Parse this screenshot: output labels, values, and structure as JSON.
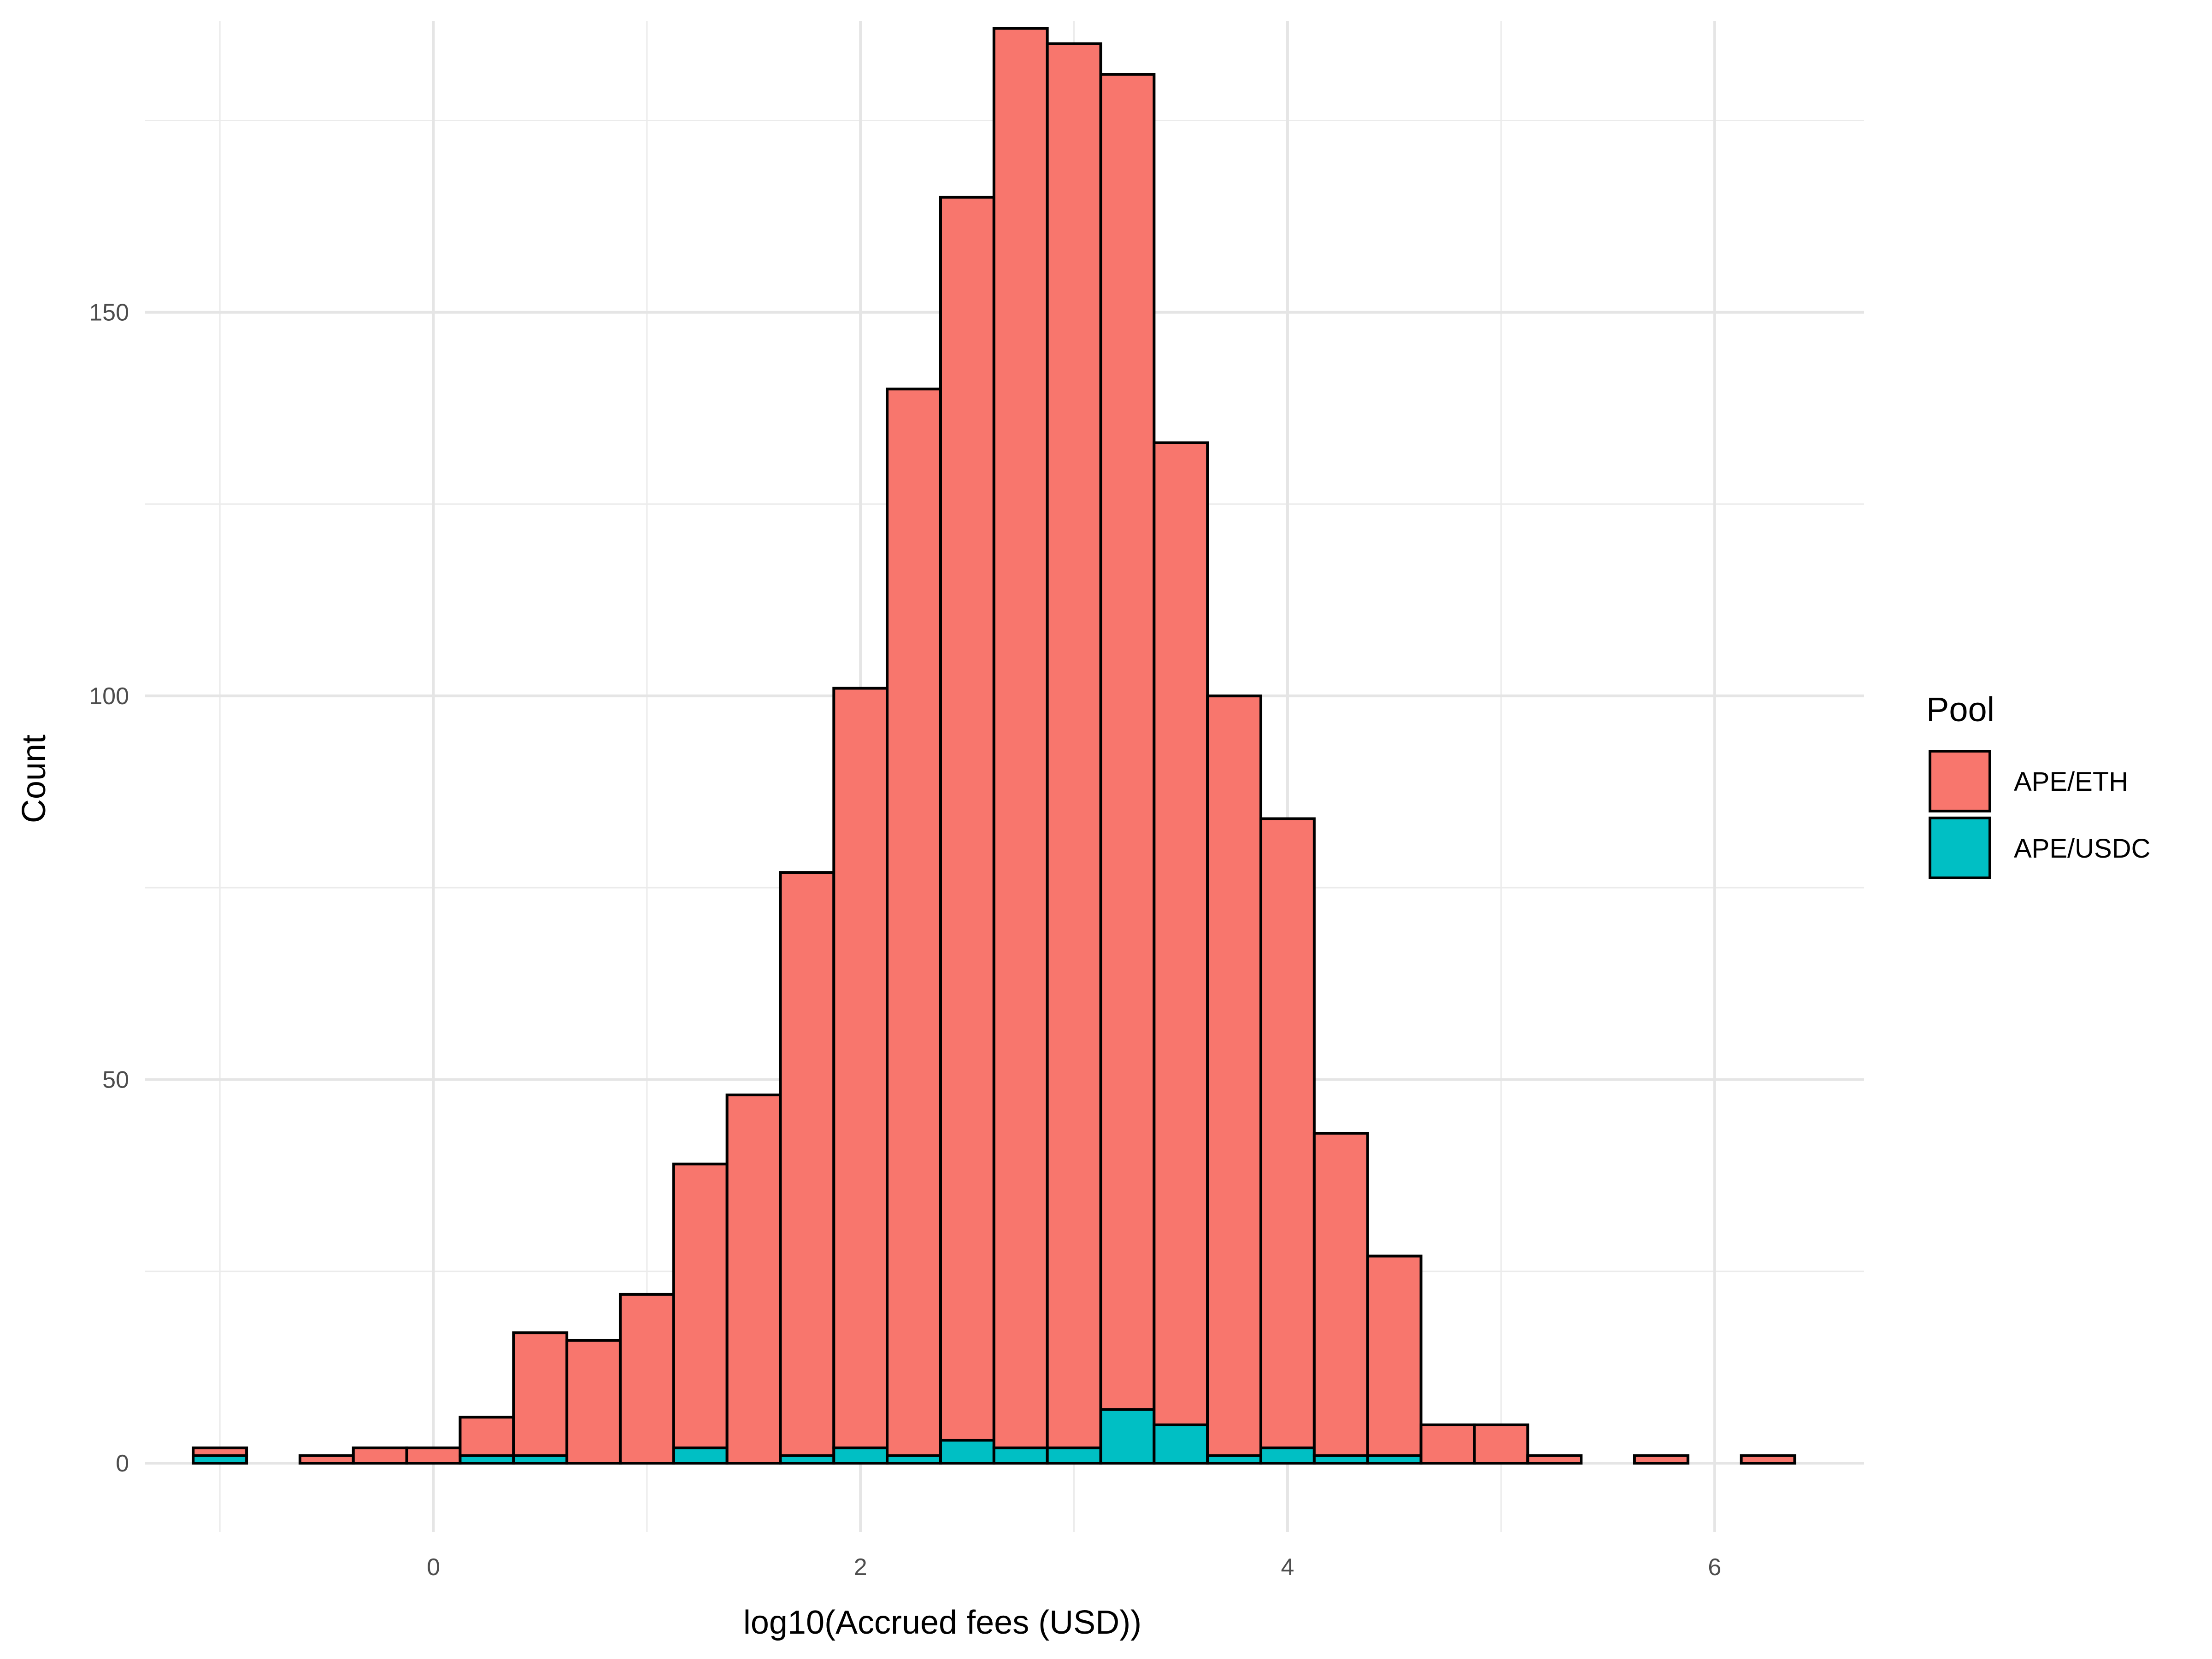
{
  "chart_data": {
    "type": "bar",
    "stacked": true,
    "xlabel": "log10(Accrued fees (USD))",
    "ylabel": "Count",
    "xlim": [
      -1.35,
      6.7
    ],
    "ylim": [
      -9,
      188
    ],
    "x_ticks": [
      0,
      2,
      4,
      6
    ],
    "x_minor_gridlines": [
      -1,
      1,
      3,
      5
    ],
    "y_ticks": [
      0,
      50,
      100,
      150
    ],
    "y_minor_gridlines": [
      25,
      75,
      125,
      175
    ],
    "grid": true,
    "bin_width": 0.25,
    "x": [
      -1.0,
      -0.75,
      -0.5,
      -0.25,
      0.0,
      0.25,
      0.5,
      0.75,
      1.0,
      1.25,
      1.5,
      1.75,
      2.0,
      2.25,
      2.5,
      2.75,
      3.0,
      3.25,
      3.5,
      3.75,
      4.0,
      4.25,
      4.5,
      4.75,
      5.0,
      5.25,
      5.5,
      5.75,
      6.0,
      6.25
    ],
    "legend_title": "Pool",
    "legend_position": "right",
    "series": [
      {
        "name": "APE/USDC",
        "color": "#00BFC4",
        "values": [
          1,
          0,
          0,
          0,
          0,
          1,
          1,
          0,
          0,
          2,
          0,
          1,
          2,
          1,
          3,
          2,
          2,
          7,
          5,
          1,
          2,
          1,
          1,
          0,
          0,
          0,
          0,
          0,
          0,
          0
        ]
      },
      {
        "name": "APE/ETH",
        "color": "#F8766D",
        "values": [
          1,
          0,
          1,
          2,
          2,
          5,
          16,
          16,
          22,
          37,
          48,
          76,
          99,
          139,
          162,
          185,
          183,
          174,
          128,
          99,
          82,
          42,
          26,
          5,
          5,
          1,
          0,
          1,
          0,
          1
        ]
      }
    ],
    "legend_order": [
      "APE/ETH",
      "APE/USDC"
    ]
  }
}
